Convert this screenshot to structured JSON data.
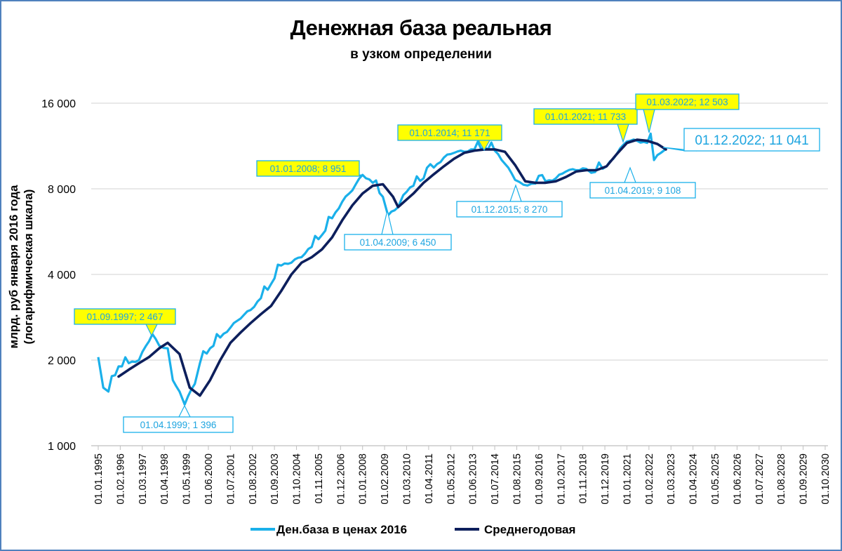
{
  "title": "Денежная база реальная",
  "subtitle": "в узком определении",
  "y_axis_label_line1": "млрд. руб января 2016 года",
  "y_axis_label_line2": "(логарифмическая шкала)",
  "y_ticks": [
    "16 000",
    "8 000",
    "4 000",
    "2 000",
    "1 000"
  ],
  "x_ticks": [
    "01.01.1995",
    "01.02.1996",
    "01.03.1997",
    "01.04.1998",
    "01.05.1999",
    "01.06.2000",
    "01.07.2001",
    "01.08.2002",
    "01.09.2003",
    "01.10.2004",
    "01.11.2005",
    "01.12.2006",
    "01.01.2008",
    "01.02.2009",
    "01.03.2010",
    "01.04.2011",
    "01.05.2012",
    "01.06.2013",
    "01.07.2014",
    "01.08.2015",
    "01.09.2016",
    "01.10.2017",
    "01.11.2018",
    "01.12.2019",
    "01.01.2021",
    "01.02.2022",
    "01.03.2023",
    "01.04.2024",
    "01.05.2025",
    "01.06.2026",
    "01.07.2027",
    "01.08.2028",
    "01.09.2029",
    "01.10.2030"
  ],
  "legend": {
    "series1": "Ден.база в ценах 2016",
    "series2": "Среднегодовая"
  },
  "colors": {
    "series1": "#1ab0ea",
    "series2": "#0d1f5c",
    "highlight_bg": "#ffff00",
    "annotation_text": "#1ea5e0",
    "frame": "#4f81bd",
    "grid": "#d9d9d9"
  },
  "annotations": [
    {
      "label": "01.09.1997; 2 467",
      "highlight": true
    },
    {
      "label": "01.04.1999; 1 396",
      "highlight": false
    },
    {
      "label": "01.01.2008; 8 951",
      "highlight": true
    },
    {
      "label": "01.04.2009; 6 450",
      "highlight": false
    },
    {
      "label": "01.01.2014; 11 171",
      "highlight": true
    },
    {
      "label": "01.12.2015; 8 270",
      "highlight": false
    },
    {
      "label": "01.04.2019; 9 108",
      "highlight": false
    },
    {
      "label": "01.01.2021; 11 733",
      "highlight": true
    },
    {
      "label": "01.03.2022; 12 503",
      "highlight": true
    },
    {
      "label": "01.12.2022;  11 041",
      "highlight": false
    }
  ],
  "chart_data": {
    "type": "line",
    "title": "Денежная база реальная",
    "subtitle": "в узком определении",
    "xlabel": "",
    "ylabel": "млрд. руб января 2016 года (логарифмическая шкала)",
    "y_scale": "log2",
    "ylim": [
      1000,
      16000
    ],
    "xlim": [
      "01.01.1995",
      "01.10.2030"
    ],
    "grid": true,
    "legend_position": "bottom",
    "series": [
      {
        "name": "Ден.база в ценах 2016",
        "x": [
          "01.01.1995",
          "01.04.1995",
          "01.07.1995",
          "01.01.1996",
          "01.07.1996",
          "01.01.1997",
          "01.09.1997",
          "01.01.1998",
          "01.06.1998",
          "01.09.1998",
          "01.01.1999",
          "01.04.1999",
          "01.10.1999",
          "01.01.2000",
          "01.07.2000",
          "01.01.2001",
          "01.07.2001",
          "01.01.2002",
          "01.07.2002",
          "01.01.2003",
          "01.07.2003",
          "01.01.2004",
          "01.07.2004",
          "01.01.2005",
          "01.07.2005",
          "01.01.2006",
          "01.07.2006",
          "01.01.2007",
          "01.07.2007",
          "01.01.2008",
          "01.07.2008",
          "01.01.2009",
          "01.04.2009",
          "01.10.2009",
          "01.01.2010",
          "01.07.2010",
          "01.01.2011",
          "01.07.2011",
          "01.01.2012",
          "01.07.2012",
          "01.01.2013",
          "01.07.2013",
          "01.01.2014",
          "01.07.2014",
          "01.01.2015",
          "01.07.2015",
          "01.12.2015",
          "01.07.2016",
          "01.01.2017",
          "01.07.2017",
          "01.01.2018",
          "01.07.2018",
          "01.01.2019",
          "01.04.2019",
          "01.01.2020",
          "01.07.2020",
          "01.01.2021",
          "01.07.2021",
          "01.01.2022",
          "01.03.2022",
          "01.05.2022",
          "01.09.2022",
          "01.12.2022"
        ],
        "values": [
          2050,
          1600,
          1550,
          1900,
          1950,
          2000,
          2467,
          2250,
          2200,
          1700,
          1550,
          1396,
          1650,
          1950,
          2200,
          2400,
          2600,
          2800,
          3000,
          3300,
          3700,
          4300,
          4400,
          4600,
          5000,
          5500,
          6300,
          7200,
          7900,
          8951,
          8400,
          7500,
          6450,
          6900,
          7600,
          8200,
          8700,
          9500,
          10300,
          10700,
          10800,
          11000,
          11171,
          10900,
          9800,
          8600,
          8270,
          8350,
          8500,
          8700,
          9200,
          9300,
          9400,
          9108,
          9600,
          10600,
          11733,
          11800,
          11600,
          12503,
          10100,
          10700,
          11041
        ]
      },
      {
        "name": "Среднегодовая",
        "x": [
          "01.01.1996",
          "01.07.1996",
          "01.01.1997",
          "01.07.1997",
          "01.01.1998",
          "01.06.1998",
          "01.01.1999",
          "01.07.1999",
          "01.01.2000",
          "01.07.2000",
          "01.01.2001",
          "01.07.2001",
          "01.01.2002",
          "01.07.2002",
          "01.01.2003",
          "01.07.2003",
          "01.01.2004",
          "01.07.2004",
          "01.01.2005",
          "01.07.2005",
          "01.01.2006",
          "01.07.2006",
          "01.01.2007",
          "01.07.2007",
          "01.01.2008",
          "01.07.2008",
          "01.01.2009",
          "01.07.2009",
          "01.10.2009",
          "01.07.2010",
          "01.01.2011",
          "01.07.2011",
          "01.01.2012",
          "01.07.2012",
          "01.01.2013",
          "01.07.2013",
          "01.01.2014",
          "01.07.2014",
          "01.01.2015",
          "01.07.2015",
          "01.01.2016",
          "01.07.2016",
          "01.01.2017",
          "01.07.2017",
          "01.01.2018",
          "01.07.2018",
          "01.01.2019",
          "01.07.2019",
          "01.01.2020",
          "01.07.2020",
          "01.01.2021",
          "01.07.2021",
          "01.01.2022",
          "01.07.2022",
          "01.12.2022"
        ],
        "values": [
          1750,
          1850,
          1950,
          2050,
          2200,
          2300,
          2100,
          1600,
          1500,
          1700,
          2000,
          2300,
          2500,
          2700,
          2900,
          3100,
          3500,
          4000,
          4400,
          4600,
          4900,
          5400,
          6200,
          7000,
          7700,
          8200,
          8300,
          7500,
          6900,
          7700,
          8400,
          9000,
          9600,
          10200,
          10700,
          10900,
          11000,
          11000,
          10800,
          9700,
          8500,
          8400,
          8400,
          8500,
          8800,
          9200,
          9300,
          9300,
          9600,
          10600,
          11600,
          11900,
          11800,
          11500,
          11000
        ]
      }
    ]
  }
}
